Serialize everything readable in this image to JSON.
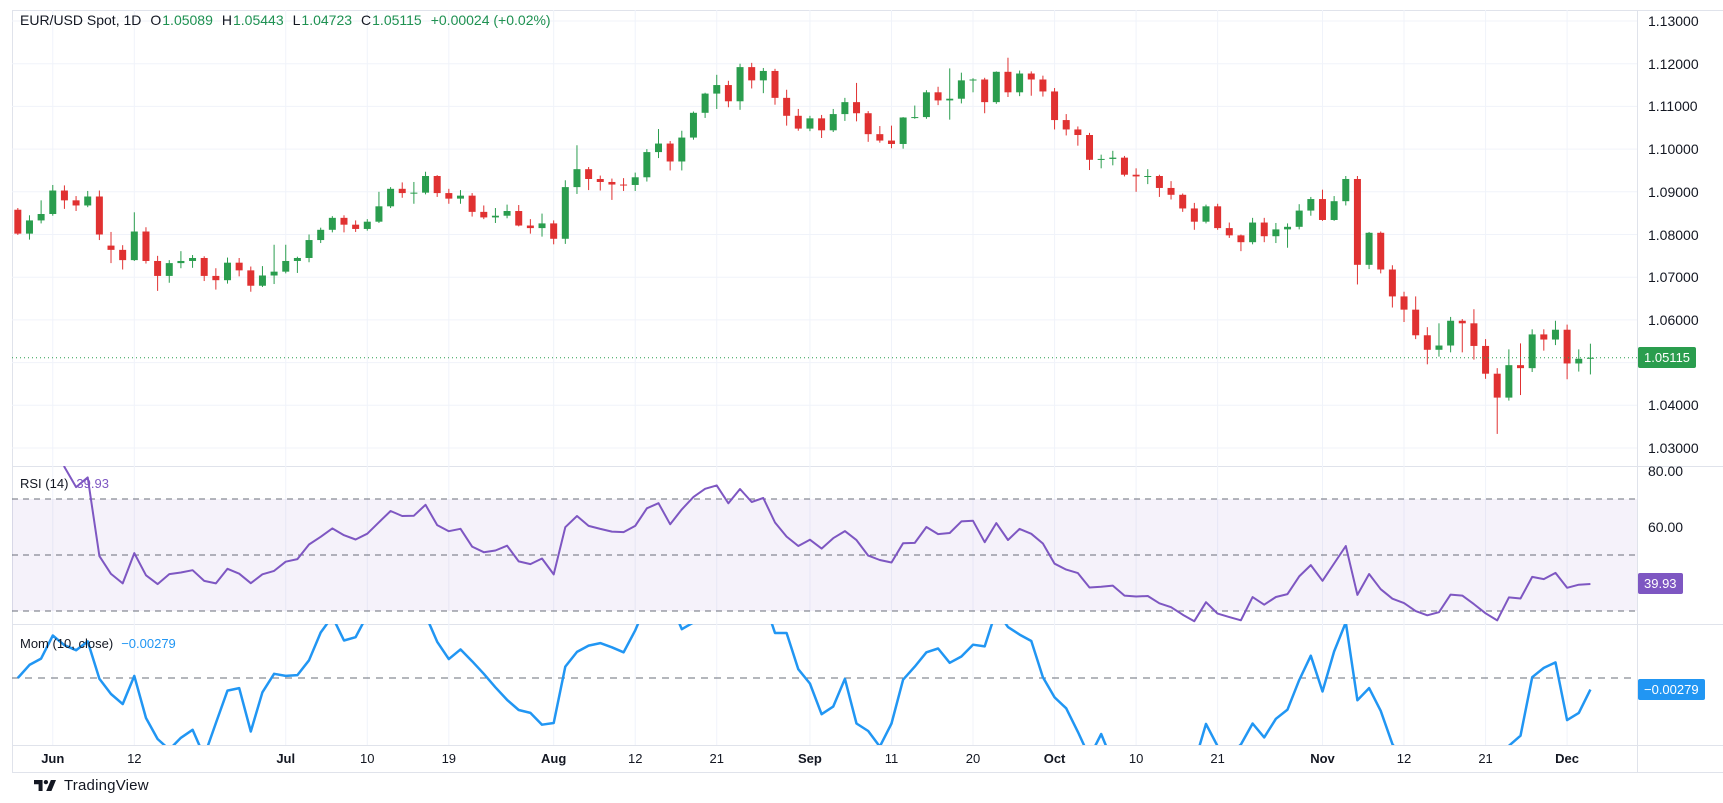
{
  "header": {
    "symbol": "EUR/USD Spot, 1D",
    "ohlc": [
      {
        "label": "O",
        "value": "1.05089"
      },
      {
        "label": "H",
        "value": "1.05443"
      },
      {
        "label": "L",
        "value": "1.04723"
      },
      {
        "label": "C",
        "value": "1.05115"
      }
    ],
    "change": "+0.00024 (+0.02%)"
  },
  "price_axis": {
    "tick_labels": [
      "1.13000",
      "1.12000",
      "1.11000",
      "1.10000",
      "1.09000",
      "1.08000",
      "1.07000",
      "1.06000",
      "1.04000",
      "1.03000"
    ],
    "tick_values": [
      1.13,
      1.12,
      1.11,
      1.1,
      1.09,
      1.08,
      1.07,
      1.06,
      1.04,
      1.03
    ],
    "badge": "1.05115",
    "badge_value": 1.05115
  },
  "rsi": {
    "title": "RSI (14)",
    "value_label": "39.93",
    "value": 39.93,
    "axis_ticks": [
      {
        "label": "80.00",
        "value": 80
      },
      {
        "label": "60.00",
        "value": 60
      }
    ],
    "levels": [
      70,
      50,
      30
    ],
    "band": [
      30,
      70
    ]
  },
  "mom": {
    "title": "Mom (10, close)",
    "value_label": "−0.00279",
    "value": -0.00279,
    "zero_level": 0
  },
  "time_axis": {
    "ticks": [
      {
        "date": "Jun 3",
        "label": "Jun",
        "bold": true
      },
      {
        "date": "Jun 12",
        "label": "12",
        "bold": false
      },
      {
        "date": "Jul 1",
        "label": "Jul",
        "bold": true
      },
      {
        "date": "Jul 10",
        "label": "10",
        "bold": false
      },
      {
        "date": "Jul 19",
        "label": "19",
        "bold": false
      },
      {
        "date": "Aug 1",
        "label": "Aug",
        "bold": true
      },
      {
        "date": "Aug 12",
        "label": "12",
        "bold": false
      },
      {
        "date": "Aug 21",
        "label": "21",
        "bold": false
      },
      {
        "date": "Sep 2",
        "label": "Sep",
        "bold": true
      },
      {
        "date": "Sep 11",
        "label": "11",
        "bold": false
      },
      {
        "date": "Sep 20",
        "label": "20",
        "bold": false
      },
      {
        "date": "Oct 1",
        "label": "Oct",
        "bold": true
      },
      {
        "date": "Oct 10",
        "label": "10",
        "bold": false
      },
      {
        "date": "Oct 21",
        "label": "21",
        "bold": false
      },
      {
        "date": "Nov 1",
        "label": "Nov",
        "bold": true
      },
      {
        "date": "Nov 12",
        "label": "12",
        "bold": false
      },
      {
        "date": "Nov 21",
        "label": "21",
        "bold": false
      },
      {
        "date": "Dec 2",
        "label": "Dec",
        "bold": true
      }
    ]
  },
  "attribution": {
    "label": "TradingView"
  },
  "colors": {
    "up": "#2a9d4e",
    "down": "#e03131",
    "rsi_line": "#7e57c2",
    "rsi_band_fill": "rgba(126,87,194,0.08)",
    "mom_line": "#2196f3",
    "dashed": "#6a6f7a",
    "grid": "#f0f3fa",
    "border": "#e0e3eb",
    "text": "#131722",
    "price_badge_bg": "#2a9d4e",
    "rsi_badge_bg": "#7e57c2",
    "mom_badge_bg": "#2196f3"
  },
  "chart_data": {
    "type": "candlestick",
    "title": "EUR/USD Spot, 1D",
    "interval": "1D",
    "ylim": [
      1.025,
      1.1326
    ],
    "y_gridlines": [
      1.03,
      1.04,
      1.05,
      1.06,
      1.07,
      1.08,
      1.09,
      1.1,
      1.11,
      1.12,
      1.13
    ],
    "current_price": 1.05115,
    "legend_position": "top-left",
    "grid": true,
    "indicators": [
      {
        "type": "rsi",
        "length": 14,
        "current": 39.93,
        "levels": [
          70,
          50,
          30
        ],
        "visible_ticks": [
          80,
          60
        ]
      },
      {
        "type": "momentum",
        "length": 10,
        "source": "close",
        "current": -0.00279
      }
    ],
    "candles": [
      [
        "May 29",
        1.0858,
        1.0862,
        1.0799,
        1.0802
      ],
      [
        "May 30",
        1.0802,
        1.0845,
        1.0788,
        1.0833
      ],
      [
        "May 31",
        1.0833,
        1.088,
        1.0826,
        1.0848
      ],
      [
        "Jun 3",
        1.0848,
        1.0916,
        1.0844,
        1.0903
      ],
      [
        "Jun 4",
        1.0903,
        1.0915,
        1.086,
        1.088
      ],
      [
        "Jun 5",
        1.088,
        1.089,
        1.0855,
        1.0868
      ],
      [
        "Jun 6",
        1.0868,
        1.0902,
        1.0864,
        1.0889
      ],
      [
        "Jun 7",
        1.0889,
        1.0903,
        1.0787,
        1.08
      ],
      [
        "Jun 10",
        1.0774,
        1.0806,
        1.0733,
        1.0764
      ],
      [
        "Jun 11",
        1.0764,
        1.0775,
        1.0718,
        1.074
      ],
      [
        "Jun 12",
        1.074,
        1.0852,
        1.0738,
        1.0807
      ],
      [
        "Jun 13",
        1.0807,
        1.0817,
        1.0732,
        1.0738
      ],
      [
        "Jun 14",
        1.0738,
        1.075,
        1.0668,
        1.0703
      ],
      [
        "Jun 17",
        1.0703,
        1.074,
        1.0687,
        1.0733
      ],
      [
        "Jun 18",
        1.0733,
        1.0761,
        1.0721,
        1.0738
      ],
      [
        "Jun 19",
        1.0738,
        1.0752,
        1.0722,
        1.0745
      ],
      [
        "Jun 20",
        1.0745,
        1.0749,
        1.0691,
        1.0703
      ],
      [
        "Jun 21",
        1.0703,
        1.0721,
        1.0671,
        1.0693
      ],
      [
        "Jun 24",
        1.0693,
        1.0746,
        1.0685,
        1.0734
      ],
      [
        "Jun 25",
        1.0734,
        1.0745,
        1.0702,
        1.0716
      ],
      [
        "Jun 26",
        1.0716,
        1.0725,
        1.0666,
        1.068
      ],
      [
        "Jun 27",
        1.068,
        1.0726,
        1.0677,
        1.0704
      ],
      [
        "Jun 28",
        1.0704,
        1.0776,
        1.0684,
        1.0713
      ],
      [
        "Jul 1",
        1.0713,
        1.0776,
        1.0709,
        1.0738
      ],
      [
        "Jul 2",
        1.0738,
        1.0748,
        1.071,
        1.0745
      ],
      [
        "Jul 3",
        1.0745,
        1.08,
        1.0735,
        1.0787
      ],
      [
        "Jul 4",
        1.0787,
        1.0816,
        1.078,
        1.0811
      ],
      [
        "Jul 5",
        1.0811,
        1.0843,
        1.0805,
        1.0839
      ],
      [
        "Jul 8",
        1.0839,
        1.0845,
        1.0805,
        1.0823
      ],
      [
        "Jul 9",
        1.0823,
        1.0833,
        1.0806,
        1.0813
      ],
      [
        "Jul 10",
        1.0813,
        1.0836,
        1.0809,
        1.083
      ],
      [
        "Jul 11",
        1.083,
        1.09,
        1.0827,
        1.0866
      ],
      [
        "Jul 12",
        1.0866,
        1.0911,
        1.0862,
        1.0907
      ],
      [
        "Jul 15",
        1.0907,
        1.0922,
        1.0886,
        1.0897
      ],
      [
        "Jul 16",
        1.0897,
        1.0923,
        1.0872,
        1.0898
      ],
      [
        "Jul 17",
        1.0898,
        1.0947,
        1.0894,
        1.0937
      ],
      [
        "Jul 18",
        1.0937,
        1.0939,
        1.0888,
        1.0897
      ],
      [
        "Jul 19",
        1.0897,
        1.0907,
        1.0872,
        1.0884
      ],
      [
        "Jul 22",
        1.0884,
        1.0904,
        1.0872,
        1.0891
      ],
      [
        "Jul 23",
        1.0891,
        1.0897,
        1.0842,
        1.0853
      ],
      [
        "Jul 24",
        1.0853,
        1.0868,
        1.0836,
        1.084
      ],
      [
        "Jul 25",
        1.084,
        1.0862,
        1.0827,
        1.0844
      ],
      [
        "Jul 26",
        1.0844,
        1.087,
        1.0838,
        1.0855
      ],
      [
        "Jul 29",
        1.0855,
        1.0869,
        1.0819,
        1.0821
      ],
      [
        "Jul 30",
        1.0821,
        1.0836,
        1.0802,
        1.0815
      ],
      [
        "Jul 31",
        1.0815,
        1.0849,
        1.0795,
        1.0826
      ],
      [
        "Aug 1",
        1.0826,
        1.0833,
        1.0777,
        1.079
      ],
      [
        "Aug 2",
        1.079,
        1.0927,
        1.0778,
        1.0911
      ],
      [
        "Aug 5",
        1.0911,
        1.1009,
        1.0895,
        1.0953
      ],
      [
        "Aug 6",
        1.0953,
        1.0958,
        1.0904,
        1.093
      ],
      [
        "Aug 7",
        1.093,
        1.0938,
        1.0903,
        1.0923
      ],
      [
        "Aug 8",
        1.0923,
        1.0931,
        1.0881,
        1.0917
      ],
      [
        "Aug 9",
        1.0917,
        1.0932,
        1.0902,
        1.0916
      ],
      [
        "Aug 12",
        1.0916,
        1.0945,
        1.0902,
        1.0934
      ],
      [
        "Aug 13",
        1.0934,
        1.1,
        1.0924,
        1.0993
      ],
      [
        "Aug 14",
        1.0993,
        1.1047,
        1.0979,
        1.1013
      ],
      [
        "Aug 15",
        1.1013,
        1.1019,
        1.095,
        1.0971
      ],
      [
        "Aug 16",
        1.0971,
        1.1043,
        1.095,
        1.1027
      ],
      [
        "Aug 19",
        1.1027,
        1.1088,
        1.1022,
        1.1085
      ],
      [
        "Aug 20",
        1.1085,
        1.1132,
        1.1073,
        1.113
      ],
      [
        "Aug 21",
        1.113,
        1.1174,
        1.1094,
        1.115
      ],
      [
        "Aug 22",
        1.115,
        1.116,
        1.1098,
        1.1112
      ],
      [
        "Aug 23",
        1.1112,
        1.12,
        1.1092,
        1.1192
      ],
      [
        "Aug 26",
        1.1192,
        1.1202,
        1.1142,
        1.1161
      ],
      [
        "Aug 27",
        1.1161,
        1.119,
        1.1131,
        1.1183
      ],
      [
        "Aug 28",
        1.1183,
        1.1188,
        1.1104,
        1.112
      ],
      [
        "Aug 29",
        1.112,
        1.1139,
        1.1055,
        1.1078
      ],
      [
        "Aug 30",
        1.1078,
        1.1094,
        1.1043,
        1.1048
      ],
      [
        "Sep 2",
        1.1048,
        1.1078,
        1.1042,
        1.1072
      ],
      [
        "Sep 3",
        1.1072,
        1.108,
        1.1026,
        1.1044
      ],
      [
        "Sep 4",
        1.1044,
        1.1094,
        1.104,
        1.1082
      ],
      [
        "Sep 5",
        1.1082,
        1.112,
        1.1066,
        1.111
      ],
      [
        "Sep 6",
        1.111,
        1.1155,
        1.1065,
        1.1084
      ],
      [
        "Sep 9",
        1.1084,
        1.1089,
        1.1017,
        1.1035
      ],
      [
        "Sep 10",
        1.1035,
        1.1054,
        1.1015,
        1.102
      ],
      [
        "Sep 11",
        1.102,
        1.1055,
        1.1002,
        1.1012
      ],
      [
        "Sep 12",
        1.1012,
        1.1075,
        1.1001,
        1.1074
      ],
      [
        "Sep 13",
        1.1074,
        1.1102,
        1.1071,
        1.1075
      ],
      [
        "Sep 16",
        1.1075,
        1.1138,
        1.1071,
        1.1133
      ],
      [
        "Sep 17",
        1.1133,
        1.1146,
        1.1103,
        1.1114
      ],
      [
        "Sep 18",
        1.1114,
        1.1189,
        1.1069,
        1.1118
      ],
      [
        "Sep 19",
        1.1118,
        1.1179,
        1.1107,
        1.1161
      ],
      [
        "Sep 20",
        1.1161,
        1.1166,
        1.1133,
        1.1163
      ],
      [
        "Sep 23",
        1.1163,
        1.1167,
        1.1084,
        1.111
      ],
      [
        "Sep 24",
        1.111,
        1.1182,
        1.1106,
        1.1181
      ],
      [
        "Sep 25",
        1.1181,
        1.1214,
        1.1122,
        1.1133
      ],
      [
        "Sep 26",
        1.1133,
        1.1184,
        1.1124,
        1.1177
      ],
      [
        "Sep 27",
        1.1177,
        1.1182,
        1.1125,
        1.1163
      ],
      [
        "Sep 30",
        1.1163,
        1.1172,
        1.1123,
        1.1135
      ],
      [
        "Oct 1",
        1.1135,
        1.1143,
        1.1046,
        1.1068
      ],
      [
        "Oct 2",
        1.1068,
        1.1082,
        1.1032,
        1.1046
      ],
      [
        "Oct 3",
        1.1046,
        1.1053,
        1.1008,
        1.1033
      ],
      [
        "Oct 4",
        1.1033,
        1.1038,
        1.0951,
        1.0975
      ],
      [
        "Oct 7",
        1.0975,
        1.0987,
        1.0955,
        1.0977
      ],
      [
        "Oct 8",
        1.0977,
        1.0996,
        1.0962,
        1.098
      ],
      [
        "Oct 9",
        1.098,
        1.0984,
        1.0936,
        1.094
      ],
      [
        "Oct 10",
        1.094,
        1.0955,
        1.09,
        1.0936
      ],
      [
        "Oct 11",
        1.0936,
        1.0953,
        1.0918,
        1.0937
      ],
      [
        "Oct 14",
        1.0937,
        1.094,
        1.0888,
        1.0909
      ],
      [
        "Oct 15",
        1.0909,
        1.0925,
        1.0882,
        1.0893
      ],
      [
        "Oct 16",
        1.0893,
        1.0896,
        1.0853,
        1.0861
      ],
      [
        "Oct 17",
        1.0861,
        1.0874,
        1.0811,
        1.083
      ],
      [
        "Oct 18",
        1.083,
        1.087,
        1.0826,
        1.0866
      ],
      [
        "Oct 21",
        1.0866,
        1.0872,
        1.0811,
        1.0815
      ],
      [
        "Oct 22",
        1.0815,
        1.0828,
        1.0792,
        1.0798
      ],
      [
        "Oct 23",
        1.0798,
        1.08,
        1.0761,
        1.0782
      ],
      [
        "Oct 24",
        1.0782,
        1.0839,
        1.0777,
        1.0828
      ],
      [
        "Oct 25",
        1.0828,
        1.0839,
        1.0782,
        1.0796
      ],
      [
        "Oct 28",
        1.0796,
        1.0827,
        1.078,
        1.0812
      ],
      [
        "Oct 29",
        1.0812,
        1.0826,
        1.0769,
        1.0818
      ],
      [
        "Oct 30",
        1.0818,
        1.0871,
        1.0812,
        1.0856
      ],
      [
        "Oct 31",
        1.0856,
        1.0888,
        1.0844,
        1.0883
      ],
      [
        "Nov 1",
        1.0883,
        1.0905,
        1.0832,
        1.0834
      ],
      [
        "Nov 4",
        1.0834,
        1.089,
        1.0832,
        1.0878
      ],
      [
        "Nov 5",
        1.0878,
        1.0937,
        1.0868,
        1.093
      ],
      [
        "Nov 6",
        1.093,
        1.0937,
        1.0683,
        1.0729
      ],
      [
        "Nov 7",
        1.0729,
        1.0806,
        1.0719,
        1.0804
      ],
      [
        "Nov 8",
        1.0804,
        1.0807,
        1.0709,
        1.0718
      ],
      [
        "Nov 11",
        1.0718,
        1.0728,
        1.0629,
        1.0655
      ],
      [
        "Nov 12",
        1.0655,
        1.0666,
        1.0595,
        1.0624
      ],
      [
        "Nov 13",
        1.0624,
        1.0655,
        1.0555,
        1.0564
      ],
      [
        "Nov 14",
        1.0564,
        1.0583,
        1.0496,
        1.053
      ],
      [
        "Nov 15",
        1.053,
        1.0592,
        1.0514,
        1.054
      ],
      [
        "Nov 18",
        1.054,
        1.0607,
        1.0524,
        1.0598
      ],
      [
        "Nov 19",
        1.0598,
        1.0602,
        1.0524,
        1.0592
      ],
      [
        "Nov 20",
        1.0592,
        1.0625,
        1.0507,
        1.0539
      ],
      [
        "Nov 21",
        1.0539,
        1.0555,
        1.0462,
        1.0474
      ],
      [
        "Nov 22",
        1.0474,
        1.0487,
        1.0333,
        1.0418
      ],
      [
        "Nov 25",
        1.0418,
        1.0531,
        1.0411,
        1.0494
      ],
      [
        "Nov 26",
        1.0494,
        1.0545,
        1.0424,
        1.0487
      ],
      [
        "Nov 27",
        1.0487,
        1.0578,
        1.0478,
        1.0566
      ],
      [
        "Nov 28",
        1.0566,
        1.0578,
        1.0528,
        1.0554
      ],
      [
        "Nov 29",
        1.0554,
        1.0598,
        1.0541,
        1.0577
      ],
      [
        "Dec 2",
        1.0577,
        1.0589,
        1.0461,
        1.0498
      ],
      [
        "Dec 3",
        1.0498,
        1.0531,
        1.0479,
        1.0509
      ],
      [
        "Dec 4",
        1.05089,
        1.05443,
        1.04723,
        1.05115
      ]
    ]
  }
}
